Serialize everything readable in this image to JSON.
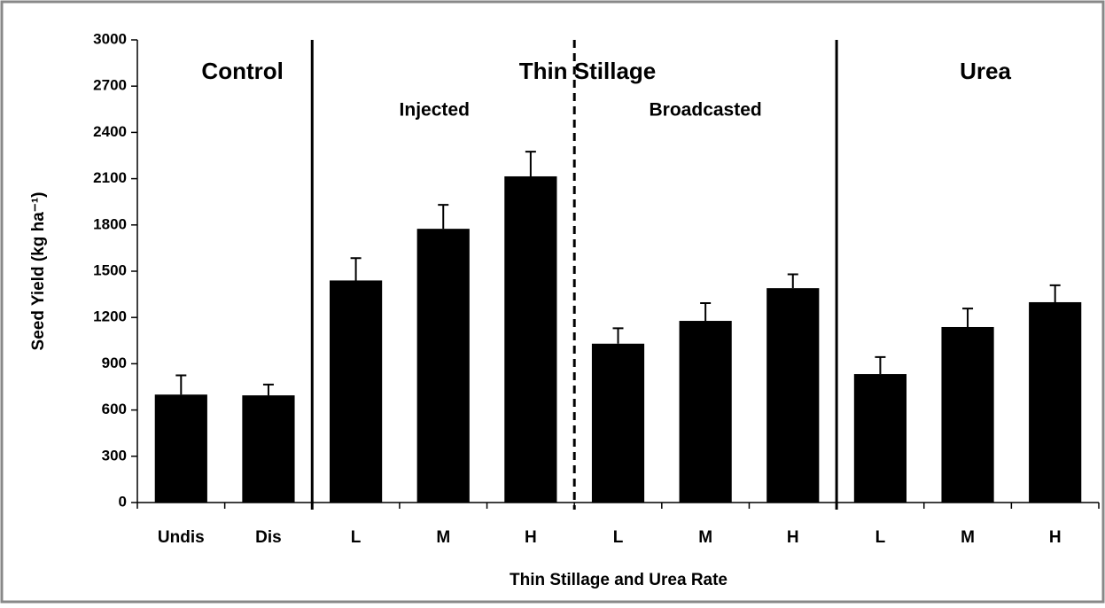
{
  "chart_data": {
    "type": "bar",
    "x_label": "Thin Stillage and Urea Rate",
    "y_label": "Seed Yield (kg ha⁻¹)",
    "annotations": [
      "Control",
      "Thin Stillage",
      "Urea",
      "Injected",
      "Broadcasted"
    ],
    "categories": [
      "Undis",
      "Dis",
      "L",
      "M",
      "H",
      "L",
      "M",
      "H",
      "L",
      "M",
      "H"
    ],
    "values": [
      700,
      695,
      1440,
      1775,
      2115,
      1030,
      1178,
      1390,
      833,
      1138,
      1299
    ],
    "errors": [
      125,
      70,
      145,
      155,
      160,
      100,
      115,
      90,
      110,
      120,
      110
    ],
    "color": "#000000",
    "ylim": [
      0,
      3000
    ],
    "yticks": [
      0,
      300,
      600,
      900,
      1200,
      1500,
      1800,
      2100,
      2400,
      2700,
      3000
    ],
    "grid": false
  }
}
